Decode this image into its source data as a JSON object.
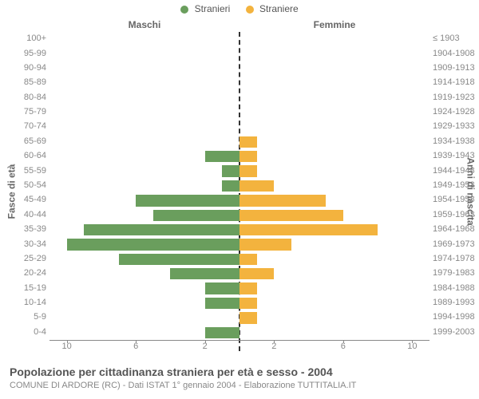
{
  "chart": {
    "type": "population-pyramid",
    "legend": {
      "left": {
        "label": "Stranieri",
        "color": "#6a9e5d"
      },
      "right": {
        "label": "Straniere",
        "color": "#f3b33e"
      }
    },
    "column_headers": {
      "left": "Maschi",
      "right": "Femmine"
    },
    "yaxis_left_title": "Fasce di età",
    "yaxis_right_title": "Anni di nascita",
    "title": "Popolazione per cittadinanza straniera per età e sesso - 2004",
    "subtitle": "COMUNE DI ARDORE (RC) - Dati ISTAT 1° gennaio 2004 - Elaborazione TUTTITALIA.IT",
    "x_ticks_left": [
      10,
      6,
      2
    ],
    "x_ticks_right": [
      2,
      6,
      10
    ],
    "x_max": 11,
    "background_color": "#ffffff",
    "rows": [
      {
        "age": "100+",
        "birth": "≤ 1903",
        "m": 0,
        "f": 0
      },
      {
        "age": "95-99",
        "birth": "1904-1908",
        "m": 0,
        "f": 0
      },
      {
        "age": "90-94",
        "birth": "1909-1913",
        "m": 0,
        "f": 0
      },
      {
        "age": "85-89",
        "birth": "1914-1918",
        "m": 0,
        "f": 0
      },
      {
        "age": "80-84",
        "birth": "1919-1923",
        "m": 0,
        "f": 0
      },
      {
        "age": "75-79",
        "birth": "1924-1928",
        "m": 0,
        "f": 0
      },
      {
        "age": "70-74",
        "birth": "1929-1933",
        "m": 0,
        "f": 0
      },
      {
        "age": "65-69",
        "birth": "1934-1938",
        "m": 0,
        "f": 1
      },
      {
        "age": "60-64",
        "birth": "1939-1943",
        "m": 2,
        "f": 1
      },
      {
        "age": "55-59",
        "birth": "1944-1948",
        "m": 1,
        "f": 1
      },
      {
        "age": "50-54",
        "birth": "1949-1953",
        "m": 1,
        "f": 2
      },
      {
        "age": "45-49",
        "birth": "1954-1958",
        "m": 6,
        "f": 5
      },
      {
        "age": "40-44",
        "birth": "1959-1963",
        "m": 5,
        "f": 6
      },
      {
        "age": "35-39",
        "birth": "1964-1968",
        "m": 9,
        "f": 8
      },
      {
        "age": "30-34",
        "birth": "1969-1973",
        "m": 10,
        "f": 3
      },
      {
        "age": "25-29",
        "birth": "1974-1978",
        "m": 7,
        "f": 1
      },
      {
        "age": "20-24",
        "birth": "1979-1983",
        "m": 4,
        "f": 2
      },
      {
        "age": "15-19",
        "birth": "1984-1988",
        "m": 2,
        "f": 1
      },
      {
        "age": "10-14",
        "birth": "1989-1993",
        "m": 2,
        "f": 1
      },
      {
        "age": "5-9",
        "birth": "1994-1998",
        "m": 0,
        "f": 1
      },
      {
        "age": "0-4",
        "birth": "1999-2003",
        "m": 2,
        "f": 0
      }
    ],
    "bar_colors": {
      "m": "#6a9e5d",
      "f": "#f3b33e"
    },
    "label_fontsize": 11,
    "title_fontsize": 14
  }
}
